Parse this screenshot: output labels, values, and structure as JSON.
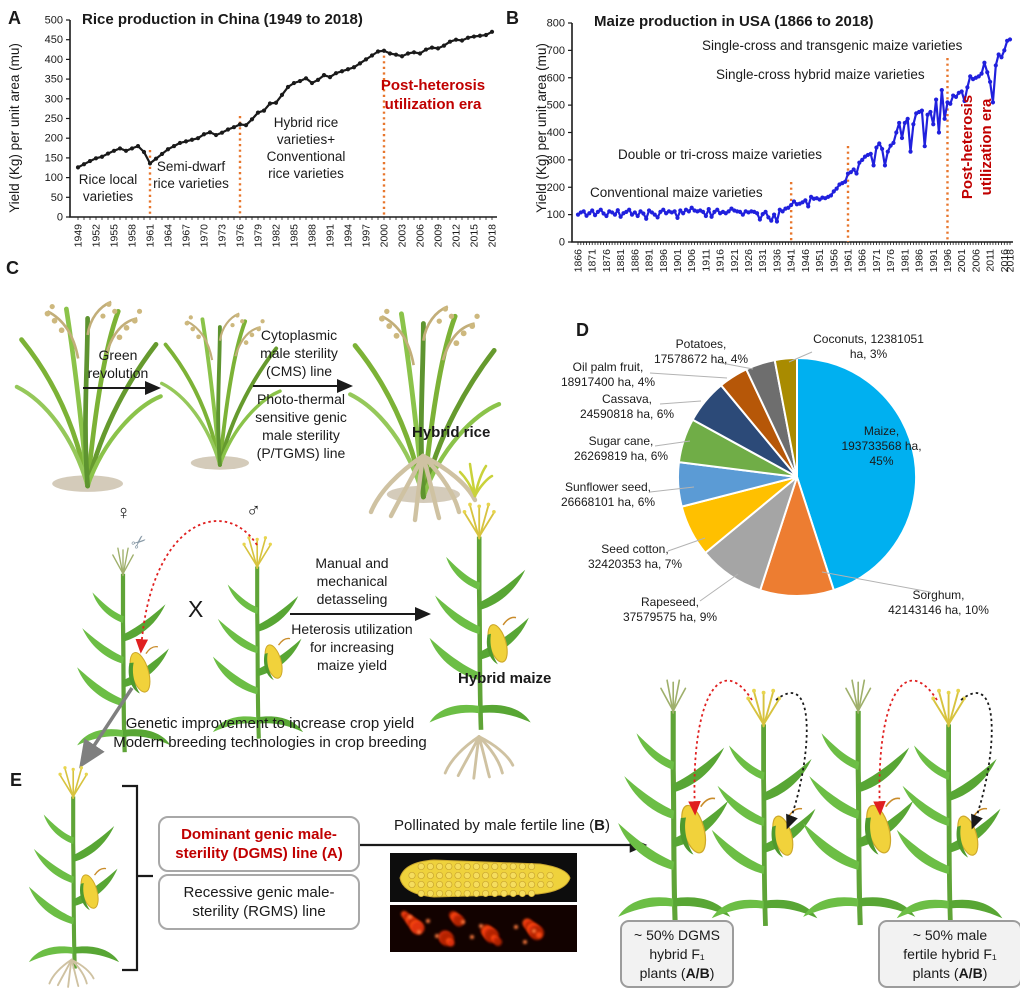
{
  "colors": {
    "rice_line": "#1a1a1a",
    "maize_line": "#2020DD",
    "era_line": "#E8762C",
    "dark_red": "#C00000"
  },
  "panel_letters": {
    "A": "A",
    "B": "B",
    "C": "C",
    "D": "D",
    "E": "E"
  },
  "chart_data": [
    {
      "type": "line",
      "panel": "A",
      "title": "Rice production in China (1949 to 2018)",
      "ylabel": "Yield (Kg) per unit area (mu)",
      "xlabel": "",
      "ylim": [
        0,
        500
      ],
      "y_tick_step": 50,
      "x_start": 1949,
      "x_end": 2018,
      "x_step": 1,
      "x_tick_labels": [
        "1949",
        "1952",
        "1955",
        "1958",
        "1961",
        "1964",
        "1967",
        "1970",
        "1973",
        "1976",
        "1979",
        "1982",
        "1985",
        "1988",
        "1991",
        "1994",
        "1997",
        "2000",
        "2003",
        "2006",
        "2009",
        "2012",
        "2015",
        "2018"
      ],
      "era_lines": [
        1961,
        1976,
        2000
      ],
      "line_color": "#1a1a1a",
      "series": [
        {
          "name": "Rice yield (Kg) per unit area (mu)",
          "values": [
            126,
            134,
            142,
            149,
            153,
            161,
            168,
            174,
            168,
            174,
            180,
            165,
            136,
            148,
            160,
            172,
            180,
            188,
            192,
            196,
            200,
            210,
            215,
            208,
            214,
            222,
            228,
            235,
            233,
            248,
            265,
            270,
            288,
            290,
            310,
            330,
            340,
            345,
            352,
            340,
            348,
            360,
            355,
            365,
            370,
            375,
            380,
            390,
            400,
            410,
            420,
            422,
            415,
            412,
            408,
            415,
            418,
            415,
            425,
            430,
            428,
            435,
            445,
            450,
            448,
            455,
            458,
            460,
            462,
            470
          ]
        }
      ],
      "annotations": [
        "Rice local\nvarieties",
        "Semi-dwarf\nrice varieties",
        "Hybrid rice\nvarieties+\nConventional\nrice varieties",
        "Post-heterosis\nutilization era"
      ]
    },
    {
      "type": "line",
      "panel": "B",
      "title": "Maize production in USA (1866 to 2018)",
      "ylabel": "Yield (Kg) per unit area (mu)",
      "xlabel": "",
      "ylim": [
        0,
        800
      ],
      "y_tick_step": 100,
      "x_start": 1866,
      "x_end": 2018,
      "x_step": 1,
      "x_tick_labels": [
        "1866",
        "1871",
        "1876",
        "1881",
        "1886",
        "1891",
        "1896",
        "1901",
        "1906",
        "1911",
        "1916",
        "1921",
        "1926",
        "1931",
        "1936",
        "1941",
        "1946",
        "1951",
        "1956",
        "1961",
        "1966",
        "1971",
        "1976",
        "1981",
        "1986",
        "1991",
        "1996",
        "2001",
        "2006",
        "2011",
        "2016",
        "2018"
      ],
      "era_lines": [
        1941,
        1961,
        1996
      ],
      "line_color": "#2020DD",
      "series": [
        {
          "name": "Maize yield (Kg) per unit area (mu)",
          "values": [
            100,
            108,
            112,
            96,
            105,
            115,
            98,
            110,
            118,
            104,
            95,
            112,
            108,
            100,
            116,
            92,
            105,
            110,
            118,
            100,
            108,
            95,
            112,
            104,
            85,
            115,
            108,
            100,
            90,
            110,
            118,
            105,
            112,
            108,
            112,
            88,
            115,
            105,
            118,
            112,
            125,
            115,
            112,
            115,
            110,
            95,
            120,
            92,
            110,
            118,
            105,
            110,
            105,
            112,
            122,
            115,
            112,
            110,
            100,
            112,
            108,
            112,
            110,
            105,
            82,
            102,
            110,
            90,
            78,
            100,
            75,
            118,
            112,
            122,
            125,
            135,
            148,
            138,
            140,
            145,
            152,
            130,
            165,
            158,
            160,
            155,
            162,
            160,
            165,
            170,
            185,
            195,
            210,
            215,
            220,
            250,
            255,
            265,
            250,
            290,
            300,
            312,
            318,
            322,
            280,
            345,
            360,
            340,
            280,
            330,
            352,
            362,
            400,
            435,
            380,
            435,
            450,
            330,
            430,
            470,
            475,
            480,
            350,
            465,
            475,
            430,
            520,
            400,
            555,
            450,
            510,
            505,
            535,
            530,
            545,
            550,
            515,
            565,
            605,
            595,
            600,
            605,
            615,
            655,
            620,
            585,
            510,
            645,
            685,
            675,
            700,
            735,
            740
          ]
        }
      ],
      "annotations": [
        "Conventional maize varieties",
        "Double or tri-cross maize varieties",
        "Single-cross hybrid maize varieties",
        "Single-cross and transgenic maize varieties",
        "Post-heterosis\nutilization era"
      ]
    },
    {
      "type": "pie",
      "panel": "D",
      "title": "",
      "unit": "ha",
      "slices": [
        {
          "name": "Maize",
          "area_ha": 193733568,
          "pct": 45,
          "color": "#00B0F0",
          "label": "Maize,\n193733568 ha,\n45%"
        },
        {
          "name": "Sorghum",
          "area_ha": 42143146,
          "pct": 10,
          "color": "#ED7D31",
          "label": "Sorghum,\n42143146 ha, 10%"
        },
        {
          "name": "Rapeseed",
          "area_ha": 37579575,
          "pct": 9,
          "color": "#A5A5A5",
          "label": "Rapeseed,\n37579575 ha, 9%"
        },
        {
          "name": "Seed cotton",
          "area_ha": 32420353,
          "pct": 7,
          "color": "#FFC000",
          "label": "Seed cotton,\n32420353 ha, 7%"
        },
        {
          "name": "Sunflower seed",
          "area_ha": 26668101,
          "pct": 6,
          "color": "#5B9BD5",
          "label": "Sunflower seed,\n26668101 ha, 6%"
        },
        {
          "name": "Sugar cane",
          "area_ha": 26269819,
          "pct": 6,
          "color": "#70AD47",
          "label": "Sugar cane,\n26269819 ha, 6%"
        },
        {
          "name": "Cassava",
          "area_ha": 24590818,
          "pct": 6,
          "color": "#2C4A78",
          "label": "Cassava,\n24590818 ha, 6%"
        },
        {
          "name": "Oil palm fruit",
          "area_ha": 18917400,
          "pct": 4,
          "color": "#B65708",
          "label": "Oil palm fruit,\n18917400 ha, 4%"
        },
        {
          "name": "Potatoes",
          "area_ha": 17578672,
          "pct": 4,
          "color": "#6E6E6E",
          "label": "Potatoes,\n17578672 ha, 4%"
        },
        {
          "name": "Coconuts",
          "area_ha": 12381051,
          "pct": 3,
          "color": "#A98B00",
          "label": "Coconuts, 12381051\nha, 3%"
        }
      ]
    }
  ],
  "panelC": {
    "green_revolution": "Green\nrevolution",
    "cms": "Cytoplasmic\nmale sterility\n(CMS) line",
    "ptgms": "Photo-thermal\nsensitive genic\nmale sterility\n(P/TGMS) line",
    "hybrid_rice": "Hybrid rice",
    "female_symbol": "♀",
    "male_symbol": "♂",
    "scissors": "✂",
    "cross": "X",
    "detasseling": "Manual and\nmechanical\ndetasseling",
    "heterosis": "Heterosis utilization\nfor increasing\nmaize yield",
    "hybrid_maize": "Hybrid maize",
    "caption": "Genetic improvement to increase crop yield\nModern breeding technologies in crop breeding"
  },
  "panelE": {
    "dgms": "Dominant genic male-\nsterility (DGMS) line (A)",
    "rgms": "Recessive genic male-\nsterility (RGMS) line",
    "pollinated": {
      "a": "Pollinated by male fertile line (",
      "b": "B",
      "c": ")"
    },
    "box1": {
      "l1": "~ 50% DGMS",
      "l2": "hybrid F₁",
      "l3a": "plants (",
      "ab": "A/B",
      "l3b": ")"
    },
    "box2": {
      "l1": "~ 50% male",
      "l2": "fertile hybrid F₁",
      "l3a": "plants (",
      "ab": "A/B",
      "l3b": ")"
    }
  }
}
